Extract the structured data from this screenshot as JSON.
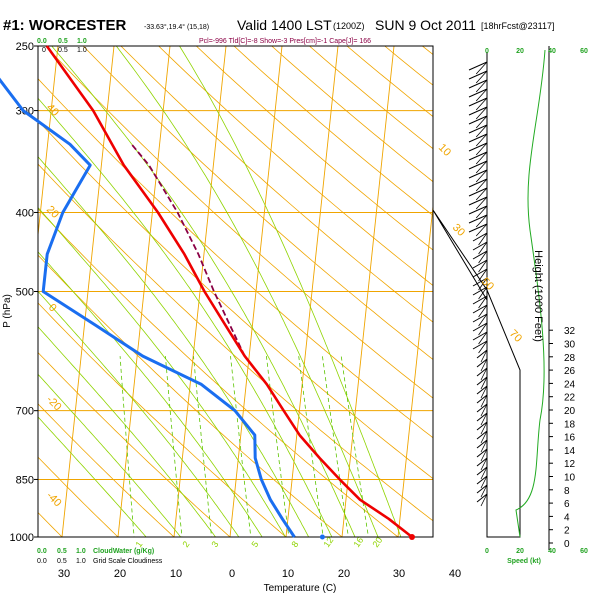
{
  "title": {
    "station": "#1: WORCESTER",
    "coords": "-33.63°,19.4° (15,18)",
    "valid": "Valid 1400 LST",
    "zulu": "(1200Z)",
    "date": "SUN 9 Oct 2011",
    "forecast": "[18hrFcst@23117]"
  },
  "subtitle": "Pcl=-996 Tld[C]=-8 Show=-3 Pres[cm]=-1 Cape[J]= 166",
  "colors": {
    "temperature": "#ee0000",
    "dewpoint": "#1a6ef0",
    "parcel": "#8b0045",
    "isobar": "#f0a500",
    "dry_adiabat": "#f0a500",
    "moist_adiabat": "#8fd400",
    "mixing_ratio": "#5cc400",
    "scale_green": "#22a322",
    "wind_profile": "#22aa22",
    "text": "#000000"
  },
  "chart_data": {
    "type": "skew-t",
    "xlabel": "Temperature (C)",
    "ylabel": "P (hPa)",
    "pressure_levels": [
      250,
      300,
      400,
      500,
      700,
      850,
      1000
    ],
    "temperature_ticks": [
      30,
      20,
      10,
      0,
      10,
      20,
      30,
      40
    ],
    "height_axis_label": "Height (1000 Feet)",
    "height_ticks": [
      0,
      2,
      4,
      6,
      8,
      10,
      12,
      14,
      16,
      18,
      20,
      22,
      24,
      26,
      28,
      30,
      32
    ],
    "wind_speed_ticks": [
      0,
      20,
      40,
      60
    ],
    "wind_speed_label": "Speed (kt)",
    "cloud_scale_top": [
      "0.0",
      "0.5",
      "1.0"
    ],
    "cloud_scale_mid": [
      "0",
      "0.5",
      "1.0"
    ],
    "cloud_scale_bottom_green": [
      "0.0",
      "0.5",
      "1.0"
    ],
    "cloud_scale_bottom_black": [
      "0.0",
      "0.5",
      "1.0"
    ],
    "cloud_water_label": "CloudWater (g/Kg)",
    "grid_cloudiness_label": "Grid Scale Cloudiness",
    "dry_adiabat_labels": [
      "40",
      "20",
      "0",
      "-20",
      "-40",
      "10",
      "30",
      "50",
      "70",
      "0"
    ],
    "mixing_ratio_labels": [
      "1",
      "2",
      "3",
      "5",
      "8",
      "12",
      "16",
      "20"
    ],
    "temperature_profile": [
      {
        "p": 1000,
        "t": 32.5
      },
      {
        "p": 950,
        "t": 28.0
      },
      {
        "p": 900,
        "t": 22.5
      },
      {
        "p": 850,
        "t": 18.5
      },
      {
        "p": 800,
        "t": 14.5
      },
      {
        "p": 750,
        "t": 10.5
      },
      {
        "p": 700,
        "t": 7.2
      },
      {
        "p": 650,
        "t": 3.7
      },
      {
        "p": 600,
        "t": -0.8
      },
      {
        "p": 550,
        "t": -4.8
      },
      {
        "p": 500,
        "t": -9.2
      },
      {
        "p": 450,
        "t": -13.5
      },
      {
        "p": 400,
        "t": -19.0
      },
      {
        "p": 350,
        "t": -26.0
      },
      {
        "p": 300,
        "t": -32.5
      },
      {
        "p": 250,
        "t": -42.0
      }
    ],
    "dewpoint_profile": [
      {
        "p": 1000,
        "t": 11.5
      },
      {
        "p": 950,
        "t": 9.0
      },
      {
        "p": 900,
        "t": 6.5
      },
      {
        "p": 850,
        "t": 4.5
      },
      {
        "p": 800,
        "t": 3.0
      },
      {
        "p": 750,
        "t": 2.5
      },
      {
        "p": 700,
        "t": -1.5
      },
      {
        "p": 650,
        "t": -8.0
      },
      {
        "p": 600,
        "t": -19.0
      },
      {
        "p": 550,
        "t": -28.0
      },
      {
        "p": 500,
        "t": -38.0
      },
      {
        "p": 450,
        "t": -38.0
      },
      {
        "p": 400,
        "t": -36.0
      },
      {
        "p": 350,
        "t": -32.0
      },
      {
        "p": 330,
        "t": -36.0
      },
      {
        "p": 300,
        "t": -45.0
      },
      {
        "p": 250,
        "t": -55.0
      }
    ],
    "surface_dewpoint_marker": {
      "p": 1000,
      "t": 16.5
    },
    "parcel_profile": [
      {
        "p": 600,
        "t": -0.8
      },
      {
        "p": 550,
        "t": -4.0
      },
      {
        "p": 500,
        "t": -7.5
      },
      {
        "p": 450,
        "t": -11.0
      },
      {
        "p": 400,
        "t": -15.5
      },
      {
        "p": 350,
        "t": -21.5
      },
      {
        "p": 330,
        "t": -25.0
      }
    ]
  }
}
